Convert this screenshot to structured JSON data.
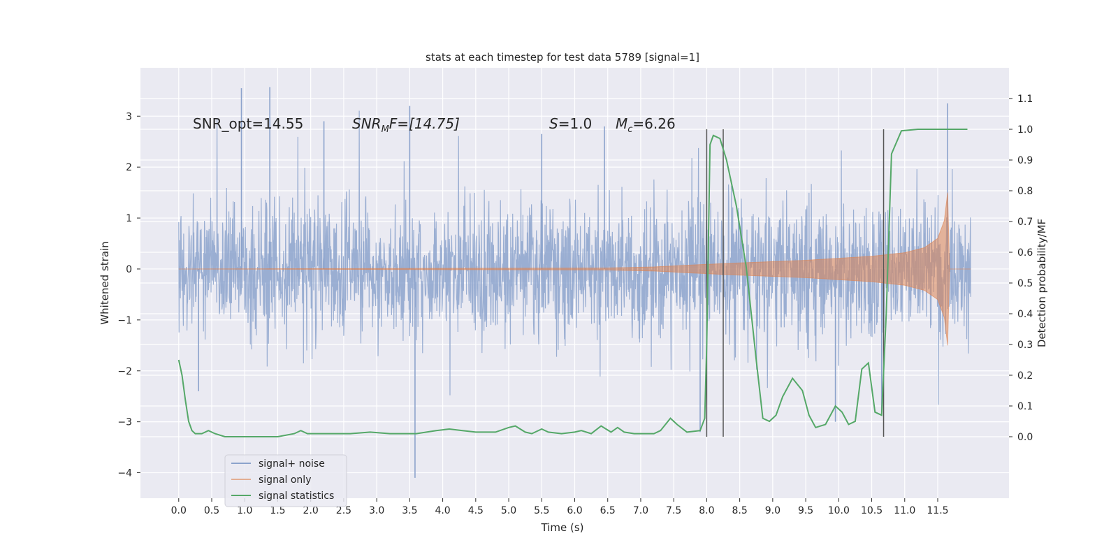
{
  "chart_data": {
    "type": "line",
    "title": "stats at each timestep for test data 5789 [signal=1]",
    "xlabel": "Time (s)",
    "ylabel": "Whitened strain",
    "ylabel_right": "Detection probability/MF",
    "xlim": [
      -0.58,
      12.58
    ],
    "ylim": [
      -4.5,
      3.95
    ],
    "ylim_right": [
      -0.2,
      1.2
    ],
    "x_ticks": [
      "0.0",
      "0.5",
      "1.0",
      "1.5",
      "2.0",
      "2.5",
      "3.0",
      "3.5",
      "4.0",
      "4.5",
      "5.0",
      "5.5",
      "6.0",
      "6.5",
      "7.0",
      "7.5",
      "8.0",
      "8.5",
      "9.0",
      "9.5",
      "10.0",
      "10.5",
      "11.0",
      "11.5"
    ],
    "y_ticks": [
      "3",
      "2",
      "1",
      "0",
      "−1",
      "−2",
      "−3",
      "−4"
    ],
    "y_ticks_right": [
      "1.1",
      "1.0",
      "0.9",
      "0.8",
      "0.7",
      "0.6",
      "0.5",
      "0.4",
      "0.3",
      "0.2",
      "0.1",
      "0.0"
    ],
    "grid": true,
    "legend_position": "lower-left",
    "colors": {
      "background": "#eaeaf2",
      "grid": "#ffffff",
      "signal_noise": "#8ca3cc",
      "signal_only": "#dd8452",
      "statistics": "#55a868",
      "vlines": "#555555"
    },
    "annotations": {
      "snr_opt": "SNR_opt=14.55",
      "snr_mf_italic": "SNR",
      "snr_mf_sub": "M",
      "snr_mf_rest": "F=[14.75]",
      "s_italic": "S",
      "s_rest": "=1.0",
      "mc_italic": "M",
      "mc_sub": "c",
      "mc_rest": "=6.26"
    },
    "vertical_lines_x": [
      8.0,
      8.25,
      10.68
    ],
    "series": [
      {
        "name": "signal+ noise",
        "style": "dense noise trace",
        "x_range": [
          0.0,
          12.0
        ],
        "spikes": [
          {
            "x": 0.95,
            "y": 3.55
          },
          {
            "x": 1.38,
            "y": 3.57
          },
          {
            "x": 3.58,
            "y": -4.1
          },
          {
            "x": 11.65,
            "y": 3.25
          },
          {
            "x": 0.3,
            "y": -2.4
          },
          {
            "x": 7.9,
            "y": -3.2
          },
          {
            "x": 9.95,
            "y": -3.0
          },
          {
            "x": 10.65,
            "y": -2.8
          },
          {
            "x": 5.5,
            "y": 2.65
          },
          {
            "x": 6.45,
            "y": 2.8
          },
          {
            "x": 2.2,
            "y": 2.9
          },
          {
            "x": 3.5,
            "y": 3.2
          }
        ]
      },
      {
        "name": "signal only",
        "style": "chirp envelope",
        "points": [
          {
            "x": 0.0,
            "y": 0.0
          },
          {
            "x": 6.5,
            "y": 0.02
          },
          {
            "x": 7.2,
            "y": 0.04
          },
          {
            "x": 7.8,
            "y": 0.08
          },
          {
            "x": 8.5,
            "y": 0.12
          },
          {
            "x": 9.5,
            "y": 0.17
          },
          {
            "x": 10.5,
            "y": 0.25
          },
          {
            "x": 11.0,
            "y": 0.32
          },
          {
            "x": 11.3,
            "y": 0.42
          },
          {
            "x": 11.5,
            "y": 0.6
          },
          {
            "x": 11.6,
            "y": 0.95
          },
          {
            "x": 11.65,
            "y": 1.5
          },
          {
            "x": 11.68,
            "y": 0.0
          },
          {
            "x": 12.0,
            "y": 0.0
          }
        ]
      },
      {
        "name": "signal statistics",
        "axis": "right",
        "points": [
          {
            "x": 0.0,
            "y": 0.25
          },
          {
            "x": 0.05,
            "y": 0.2
          },
          {
            "x": 0.1,
            "y": 0.12
          },
          {
            "x": 0.15,
            "y": 0.05
          },
          {
            "x": 0.2,
            "y": 0.02
          },
          {
            "x": 0.25,
            "y": 0.01
          },
          {
            "x": 0.35,
            "y": 0.01
          },
          {
            "x": 0.45,
            "y": 0.02
          },
          {
            "x": 0.55,
            "y": 0.01
          },
          {
            "x": 0.7,
            "y": 0.0
          },
          {
            "x": 1.0,
            "y": 0.0
          },
          {
            "x": 1.5,
            "y": 0.0
          },
          {
            "x": 1.75,
            "y": 0.01
          },
          {
            "x": 1.85,
            "y": 0.02
          },
          {
            "x": 1.95,
            "y": 0.01
          },
          {
            "x": 2.1,
            "y": 0.01
          },
          {
            "x": 2.3,
            "y": 0.01
          },
          {
            "x": 2.6,
            "y": 0.01
          },
          {
            "x": 2.9,
            "y": 0.015
          },
          {
            "x": 3.2,
            "y": 0.01
          },
          {
            "x": 3.6,
            "y": 0.01
          },
          {
            "x": 3.9,
            "y": 0.02
          },
          {
            "x": 4.1,
            "y": 0.025
          },
          {
            "x": 4.3,
            "y": 0.02
          },
          {
            "x": 4.5,
            "y": 0.015
          },
          {
            "x": 4.8,
            "y": 0.015
          },
          {
            "x": 5.0,
            "y": 0.03
          },
          {
            "x": 5.1,
            "y": 0.035
          },
          {
            "x": 5.25,
            "y": 0.015
          },
          {
            "x": 5.35,
            "y": 0.01
          },
          {
            "x": 5.5,
            "y": 0.025
          },
          {
            "x": 5.6,
            "y": 0.015
          },
          {
            "x": 5.8,
            "y": 0.01
          },
          {
            "x": 6.0,
            "y": 0.015
          },
          {
            "x": 6.1,
            "y": 0.02
          },
          {
            "x": 6.25,
            "y": 0.01
          },
          {
            "x": 6.4,
            "y": 0.035
          },
          {
            "x": 6.55,
            "y": 0.015
          },
          {
            "x": 6.65,
            "y": 0.03
          },
          {
            "x": 6.75,
            "y": 0.015
          },
          {
            "x": 6.9,
            "y": 0.01
          },
          {
            "x": 7.2,
            "y": 0.01
          },
          {
            "x": 7.3,
            "y": 0.02
          },
          {
            "x": 7.45,
            "y": 0.06
          },
          {
            "x": 7.55,
            "y": 0.04
          },
          {
            "x": 7.7,
            "y": 0.015
          },
          {
            "x": 7.9,
            "y": 0.02
          },
          {
            "x": 7.97,
            "y": 0.06
          },
          {
            "x": 8.0,
            "y": 0.3
          },
          {
            "x": 8.05,
            "y": 0.95
          },
          {
            "x": 8.1,
            "y": 0.98
          },
          {
            "x": 8.2,
            "y": 0.97
          },
          {
            "x": 8.3,
            "y": 0.9
          },
          {
            "x": 8.45,
            "y": 0.75
          },
          {
            "x": 8.6,
            "y": 0.55
          },
          {
            "x": 8.75,
            "y": 0.25
          },
          {
            "x": 8.85,
            "y": 0.06
          },
          {
            "x": 8.95,
            "y": 0.05
          },
          {
            "x": 9.05,
            "y": 0.07
          },
          {
            "x": 9.15,
            "y": 0.13
          },
          {
            "x": 9.3,
            "y": 0.19
          },
          {
            "x": 9.45,
            "y": 0.15
          },
          {
            "x": 9.55,
            "y": 0.07
          },
          {
            "x": 9.65,
            "y": 0.03
          },
          {
            "x": 9.8,
            "y": 0.04
          },
          {
            "x": 9.95,
            "y": 0.1
          },
          {
            "x": 10.05,
            "y": 0.08
          },
          {
            "x": 10.15,
            "y": 0.04
          },
          {
            "x": 10.25,
            "y": 0.05
          },
          {
            "x": 10.35,
            "y": 0.22
          },
          {
            "x": 10.45,
            "y": 0.24
          },
          {
            "x": 10.55,
            "y": 0.08
          },
          {
            "x": 10.65,
            "y": 0.07
          },
          {
            "x": 10.72,
            "y": 0.4
          },
          {
            "x": 10.8,
            "y": 0.92
          },
          {
            "x": 10.95,
            "y": 0.995
          },
          {
            "x": 11.2,
            "y": 1.0
          },
          {
            "x": 11.95,
            "y": 1.0
          }
        ]
      }
    ]
  }
}
